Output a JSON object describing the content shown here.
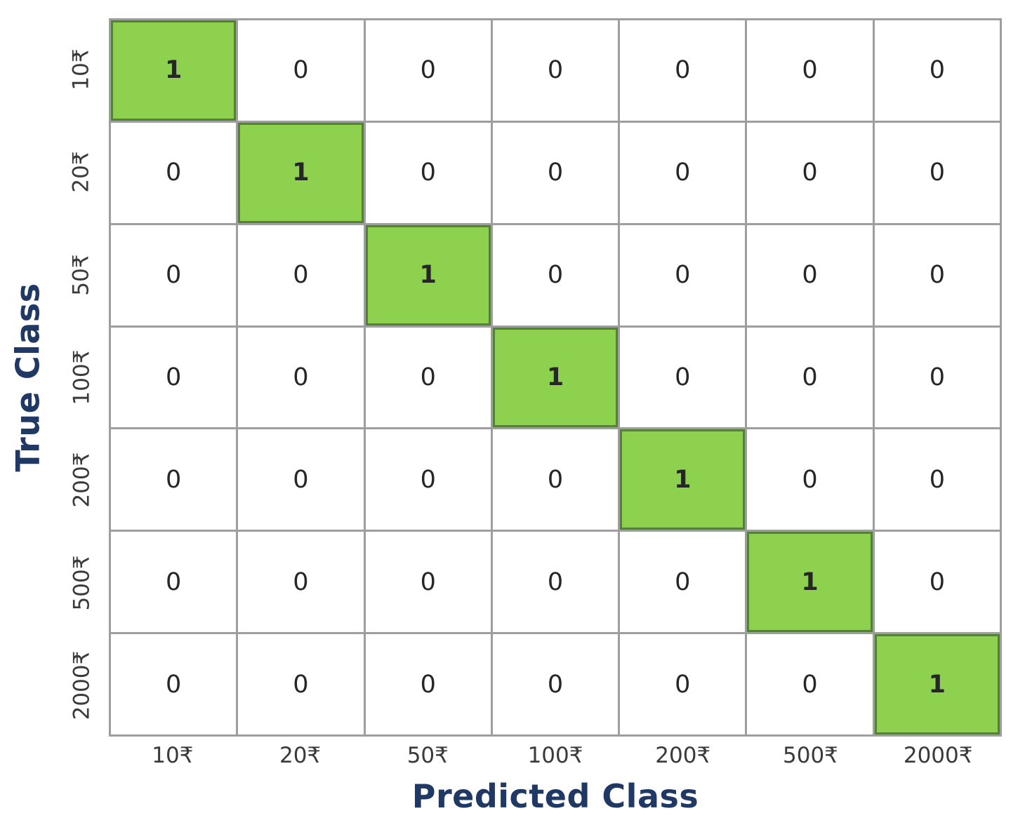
{
  "chart_data": {
    "type": "heatmap",
    "subtype": "confusion-matrix",
    "xlabel": "Predicted Class",
    "ylabel": "True Class",
    "categories": [
      "10₹",
      "20₹",
      "50₹",
      "100₹",
      "200₹",
      "500₹",
      "2000₹"
    ],
    "matrix": [
      [
        1,
        0,
        0,
        0,
        0,
        0,
        0
      ],
      [
        0,
        1,
        0,
        0,
        0,
        0,
        0
      ],
      [
        0,
        0,
        1,
        0,
        0,
        0,
        0
      ],
      [
        0,
        0,
        0,
        1,
        0,
        0,
        0
      ],
      [
        0,
        0,
        0,
        0,
        1,
        0,
        0
      ],
      [
        0,
        0,
        0,
        0,
        0,
        1,
        0
      ],
      [
        0,
        0,
        0,
        0,
        0,
        0,
        1
      ]
    ],
    "legend": "none",
    "grid": "on",
    "colors": {
      "diagonal_fill": "#8ed14e",
      "diagonal_border": "#538135",
      "grid_line": "#9e9e9e",
      "axis_title": "#1f3864",
      "tick_label": "#3a3a3a",
      "value_text": "#262626",
      "background": "#ffffff"
    }
  }
}
